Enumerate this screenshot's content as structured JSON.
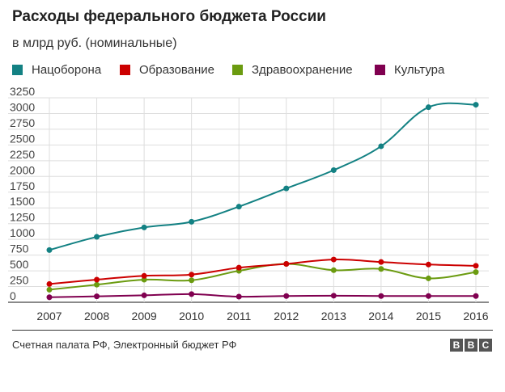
{
  "header": {
    "title": "Расходы федерального бюджета России",
    "subtitle": "в млрд руб. (номинальные)"
  },
  "chart_data": {
    "type": "line",
    "title": "Расходы федерального бюджета России",
    "subtitle": "в млрд руб. (номинальные)",
    "xlabel": "",
    "ylabel": "",
    "x": [
      2007,
      2008,
      2009,
      2010,
      2011,
      2012,
      2013,
      2014,
      2015,
      2016
    ],
    "ylim": [
      0,
      3250
    ],
    "yticks": [
      0,
      250,
      500,
      750,
      1000,
      1250,
      1500,
      1750,
      2000,
      2250,
      2500,
      2750,
      3000,
      3250
    ],
    "ytick_labels": [
      "0",
      "250",
      "500",
      "750",
      "1000",
      "1250",
      "1500",
      "1750",
      "2000",
      "2250",
      "2500",
      "2750",
      "3000",
      "3250"
    ],
    "grid": true,
    "legend_position": "top",
    "series": [
      {
        "name": "Нацоборона",
        "color": "#138183",
        "values": [
          830,
          1040,
          1190,
          1280,
          1520,
          1810,
          2100,
          2480,
          3100,
          3140
        ]
      },
      {
        "name": "Образование",
        "color": "#CC0000",
        "values": [
          290,
          360,
          420,
          440,
          550,
          610,
          680,
          640,
          600,
          580
        ]
      },
      {
        "name": "Здравоохранение",
        "color": "#6B9B10",
        "values": [
          200,
          280,
          360,
          350,
          500,
          610,
          510,
          530,
          380,
          480
        ]
      },
      {
        "name": "Культура",
        "color": "#800050",
        "values": [
          80,
          95,
          110,
          130,
          90,
          100,
          105,
          100,
          100,
          100
        ]
      }
    ]
  },
  "footer": {
    "source": "Счетная палата РФ, Электронный бюджет РФ",
    "logo_letters": [
      "B",
      "B",
      "C"
    ]
  }
}
